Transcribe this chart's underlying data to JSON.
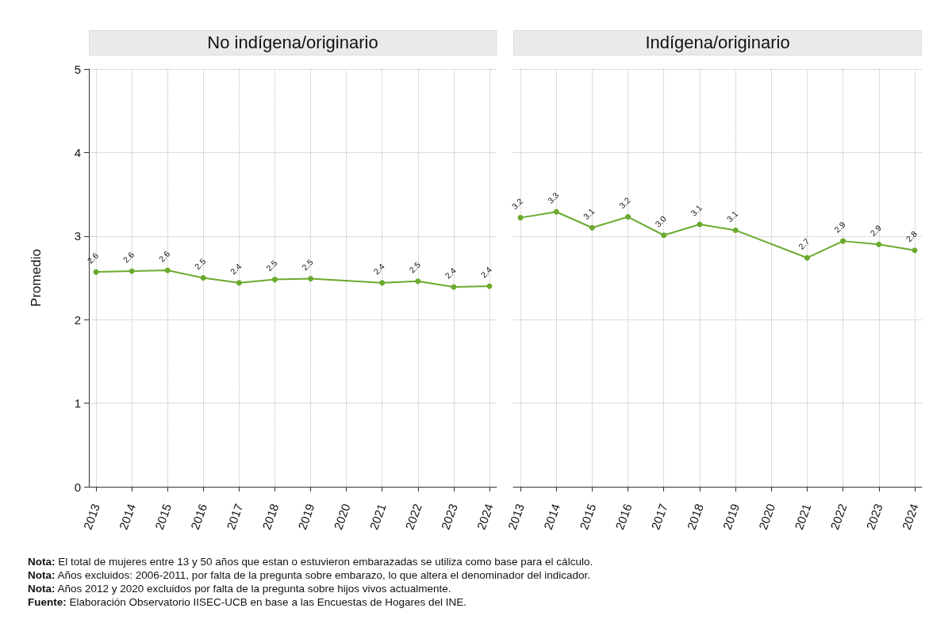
{
  "chart_data": [
    {
      "type": "line",
      "title": "No indígena/originario",
      "ylabel": "Promedio",
      "x": [
        2013,
        2014,
        2015,
        2016,
        2017,
        2018,
        2019,
        2021,
        2022,
        2023,
        2024
      ],
      "xlim": [
        2012.8,
        2024.2
      ],
      "xticks": [
        2013,
        2014,
        2015,
        2016,
        2017,
        2018,
        2019,
        2020,
        2021,
        2022,
        2023,
        2024
      ],
      "ylim": [
        0,
        5
      ],
      "yticks": [
        0,
        1,
        2,
        3,
        4,
        5
      ],
      "series": [
        {
          "color": "#6aaa2e",
          "values": [
            2.57,
            2.58,
            2.59,
            2.5,
            2.44,
            2.48,
            2.49,
            2.44,
            2.46,
            2.39,
            2.4
          ],
          "value_labels": [
            "2.6",
            "2.6",
            "2.6",
            "2.5",
            "2.4",
            "2.5",
            "2.5",
            "2.4",
            "2.5",
            "2.4",
            "2.4"
          ]
        }
      ],
      "grid": true,
      "marker": "circle",
      "line_style": "solid",
      "annotations": [
        "Nota: El total de mujeres entre 13 y 50 años que estan o estuvieron embarazadas se utiliza como base para el cálculo.",
        "Nota: Años excluidos: 2006-2011, por falta de la pregunta sobre embarazo, lo que altera el denominador del indicador.",
        "Nota: Años 2012 y 2020 excluidos por falta de la pregunta sobre hijos vivos actualmente.",
        "Fuente: Elaboración Observatorio IISEC-UCB en base a las Encuestas de Hogares del INE."
      ]
    },
    {
      "type": "line",
      "title": "Indígena/originario",
      "x": [
        2013,
        2014,
        2015,
        2016,
        2017,
        2018,
        2019,
        2021,
        2022,
        2023,
        2024
      ],
      "xlim": [
        2012.8,
        2024.2
      ],
      "xticks": [
        2013,
        2014,
        2015,
        2016,
        2017,
        2018,
        2019,
        2020,
        2021,
        2022,
        2023,
        2024
      ],
      "ylim": [
        0,
        5
      ],
      "yticks": [
        0,
        1,
        2,
        3,
        4,
        5
      ],
      "series": [
        {
          "color": "#6aaa2e",
          "values": [
            3.22,
            3.29,
            3.1,
            3.23,
            3.01,
            3.14,
            3.07,
            2.74,
            2.94,
            2.9,
            2.83
          ],
          "value_labels": [
            "3.2",
            "3.3",
            "3.1",
            "3.2",
            "3.0",
            "3.1",
            "3.1",
            "2.7",
            "2.9",
            "2.9",
            "2.8"
          ]
        }
      ],
      "grid": true,
      "marker": "circle",
      "line_style": "solid",
      "tick_labels": "x"
    }
  ]
}
